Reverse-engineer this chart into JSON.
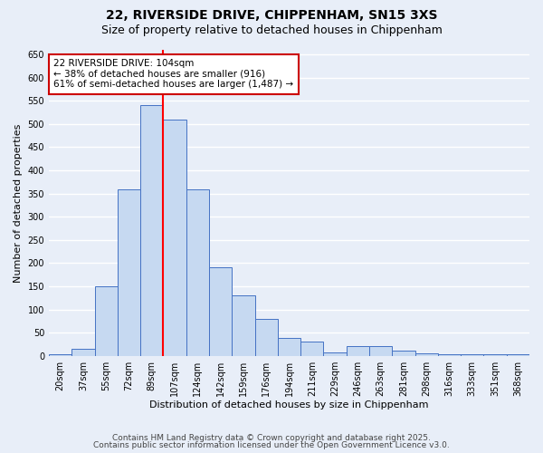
{
  "title_line1": "22, RIVERSIDE DRIVE, CHIPPENHAM, SN15 3XS",
  "title_line2": "Size of property relative to detached houses in Chippenham",
  "xlabel": "Distribution of detached houses by size in Chippenham",
  "ylabel": "Number of detached properties",
  "categories": [
    "20sqm",
    "37sqm",
    "55sqm",
    "72sqm",
    "89sqm",
    "107sqm",
    "124sqm",
    "142sqm",
    "159sqm",
    "176sqm",
    "194sqm",
    "211sqm",
    "229sqm",
    "246sqm",
    "263sqm",
    "281sqm",
    "298sqm",
    "316sqm",
    "333sqm",
    "351sqm",
    "368sqm"
  ],
  "values": [
    3,
    15,
    150,
    360,
    540,
    510,
    360,
    190,
    130,
    80,
    38,
    30,
    8,
    20,
    20,
    12,
    5,
    3,
    3,
    3,
    3
  ],
  "bar_color": "#c6d9f1",
  "bar_edge_color": "#4472c4",
  "red_line_index": 5,
  "annotation_text": "22 RIVERSIDE DRIVE: 104sqm\n← 38% of detached houses are smaller (916)\n61% of semi-detached houses are larger (1,487) →",
  "annotation_box_color": "#ffffff",
  "annotation_box_edge": "#cc0000",
  "ylim": [
    0,
    660
  ],
  "yticks": [
    0,
    50,
    100,
    150,
    200,
    250,
    300,
    350,
    400,
    450,
    500,
    550,
    600,
    650
  ],
  "footer_line1": "Contains HM Land Registry data © Crown copyright and database right 2025.",
  "footer_line2": "Contains public sector information licensed under the Open Government Licence v3.0.",
  "bg_color": "#e8eef8",
  "grid_color": "#ffffff",
  "title_fontsize": 10,
  "subtitle_fontsize": 9,
  "axis_label_fontsize": 8,
  "tick_fontsize": 7,
  "footer_fontsize": 6.5,
  "annotation_fontsize": 7.5
}
